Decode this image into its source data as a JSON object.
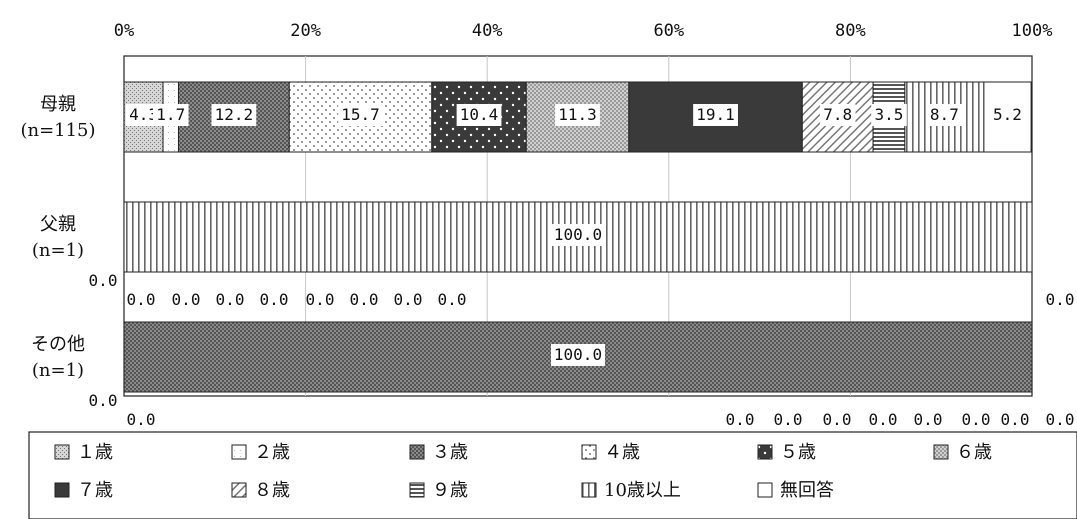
{
  "chart_data": {
    "type": "bar",
    "orientation": "horizontal",
    "stacked": "percent",
    "x_ticks": [
      "0%",
      "20%",
      "40%",
      "60%",
      "80%",
      "100%"
    ],
    "xlim": [
      0,
      100
    ],
    "grid": true,
    "legend_position": "bottom",
    "categories": [
      {
        "line1": "母親",
        "line2": "(n=115)"
      },
      {
        "line1": "父親",
        "line2": "(n=1)"
      },
      {
        "line1": "その他",
        "line2": "(n=1)"
      }
    ],
    "series": [
      {
        "name": "1歳",
        "pattern": "light-dots",
        "values": [
          4.3,
          0.0,
          0.0
        ]
      },
      {
        "name": "2歳",
        "pattern": "white-fine",
        "values": [
          1.7,
          0.0,
          0.0
        ]
      },
      {
        "name": "3歳",
        "pattern": "dark-check",
        "values": [
          12.2,
          0.0,
          100.0
        ]
      },
      {
        "name": "4歳",
        "pattern": "sparse-dots",
        "values": [
          15.7,
          0.0,
          0.0
        ]
      },
      {
        "name": "5歳",
        "pattern": "black-dots",
        "values": [
          10.4,
          0.0,
          0.0
        ]
      },
      {
        "name": "6歳",
        "pattern": "grey-check",
        "values": [
          11.3,
          0.0,
          0.0
        ]
      },
      {
        "name": "7歳",
        "pattern": "solid-dark",
        "values": [
          19.1,
          0.0,
          0.0
        ]
      },
      {
        "name": "8歳",
        "pattern": "diagonal",
        "values": [
          7.8,
          0.0,
          0.0
        ]
      },
      {
        "name": "9歳",
        "pattern": "horizontal",
        "values": [
          3.5,
          0.0,
          0.0
        ]
      },
      {
        "name": "10歳以上",
        "pattern": "vertical",
        "values": [
          8.7,
          100.0,
          0.0
        ]
      },
      {
        "name": "無回答",
        "pattern": "white",
        "values": [
          5.2,
          0.0,
          0.0
        ]
      }
    ],
    "labels": [
      [
        "4.3",
        "1.7",
        "12.2",
        "15.7",
        "10.4",
        "11.3",
        "19.1",
        "7.8",
        "3.5",
        "8.7",
        "5.2"
      ],
      [
        "0.0",
        "0.0",
        "0.0",
        "0.0",
        "0.0",
        "0.0",
        "0.0",
        "0.0",
        "0.0",
        "100.0",
        "0.0"
      ],
      [
        "0.0",
        "0.0",
        "100.0",
        "0.0",
        "0.0",
        "0.0",
        "0.0",
        "0.0",
        "0.0",
        "0.0",
        "0.0"
      ]
    ],
    "legend_labels": [
      "１歳",
      "２歳",
      "３歳",
      "４歳",
      "５歳",
      "６歳",
      "７歳",
      "８歳",
      "９歳",
      "10歳以上",
      "無回答"
    ],
    "colors": {
      "bar_edge": "#222222",
      "grid": "#c8c8c8",
      "dark": "#3a3a3a",
      "label_bg": "#ffffff"
    }
  }
}
